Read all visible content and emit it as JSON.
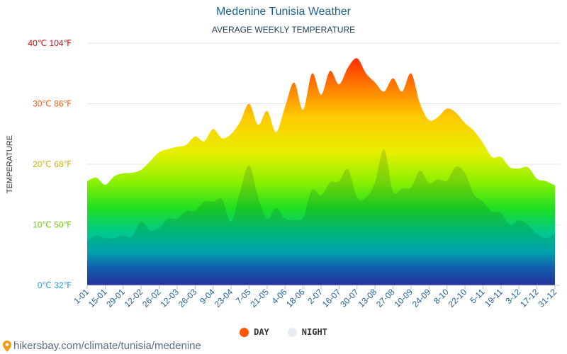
{
  "page": {
    "title": "Medenine Tunisia Weather",
    "subtitle": "AVERAGE WEEKLY TEMPERATURE",
    "source": "hikersbay.com/climate/tunisia/medenine",
    "source_icon": "location-pin-icon"
  },
  "chart_data": {
    "type": "area",
    "title": "Medenine Tunisia Weather",
    "subtitle": "AVERAGE WEEKLY TEMPERATURE",
    "ylabel": "TEMPERATURE",
    "xlabel": "",
    "ylim": [
      0,
      40
    ],
    "y_ticks": [
      {
        "value": 0,
        "label": "0℃ 32℉",
        "color": "#2196f3"
      },
      {
        "value": 10,
        "label": "10℃ 50℉",
        "color": "#66cc00"
      },
      {
        "value": 20,
        "label": "20℃ 68℉",
        "color": "#d4b000"
      },
      {
        "value": 30,
        "label": "30℃ 86℉",
        "color": "#ff5500"
      },
      {
        "value": 40,
        "label": "40℃ 104℉",
        "color": "#e00000"
      }
    ],
    "x_labels": [
      "1-01",
      "15-01",
      "29-01",
      "12-02",
      "26-02",
      "12-03",
      "26-03",
      "9-04",
      "23-04",
      "7-05",
      "21-05",
      "4-06",
      "18-06",
      "2-07",
      "16-07",
      "30-07",
      "13-08",
      "27-08",
      "10-09",
      "24-09",
      "8-10",
      "22-10",
      "5-11",
      "19-11",
      "3-12",
      "17-12",
      "31-12"
    ],
    "grid": true,
    "legend_position": "bottom-center",
    "series": [
      {
        "name": "DAY",
        "color": "#ff5500",
        "values": [
          17.2,
          17.8,
          16.6,
          18.0,
          18.5,
          18.6,
          19.1,
          20.5,
          22.0,
          22.5,
          22.9,
          23.2,
          24.6,
          23.8,
          25.8,
          24.3,
          25.0,
          27.0,
          30.0,
          26.5,
          28.8,
          25.3,
          29.5,
          33.5,
          29.0,
          35.0,
          31.5,
          35.4,
          33.2,
          36.0,
          37.5,
          35.0,
          33.5,
          32.0,
          34.2,
          32.0,
          35.0,
          30.0,
          27.3,
          27.8,
          29.2,
          28.5,
          26.8,
          25.5,
          23.5,
          21.2,
          21.2,
          19.5,
          19.3,
          19.5,
          17.6,
          17.2,
          16.5
        ]
      },
      {
        "name": "NIGHT",
        "color": "#e6ecf2",
        "values": [
          7.3,
          8.2,
          7.8,
          7.8,
          8.2,
          8.1,
          10.5,
          9.0,
          9.5,
          11.0,
          11.0,
          12.3,
          12.3,
          13.8,
          13.8,
          14.2,
          10.5,
          15.5,
          19.8,
          14.5,
          11.0,
          12.8,
          11.0,
          10.8,
          11.2,
          15.8,
          14.8,
          17.0,
          17.2,
          19.2,
          14.5,
          14.5,
          17.0,
          22.5,
          15.5,
          16.0,
          16.2,
          18.9,
          16.9,
          17.5,
          17.3,
          19.6,
          18.5,
          15.0,
          13.8,
          12.2,
          12.0,
          10.0,
          10.8,
          10.0,
          8.5,
          7.8,
          8.5
        ]
      }
    ]
  }
}
